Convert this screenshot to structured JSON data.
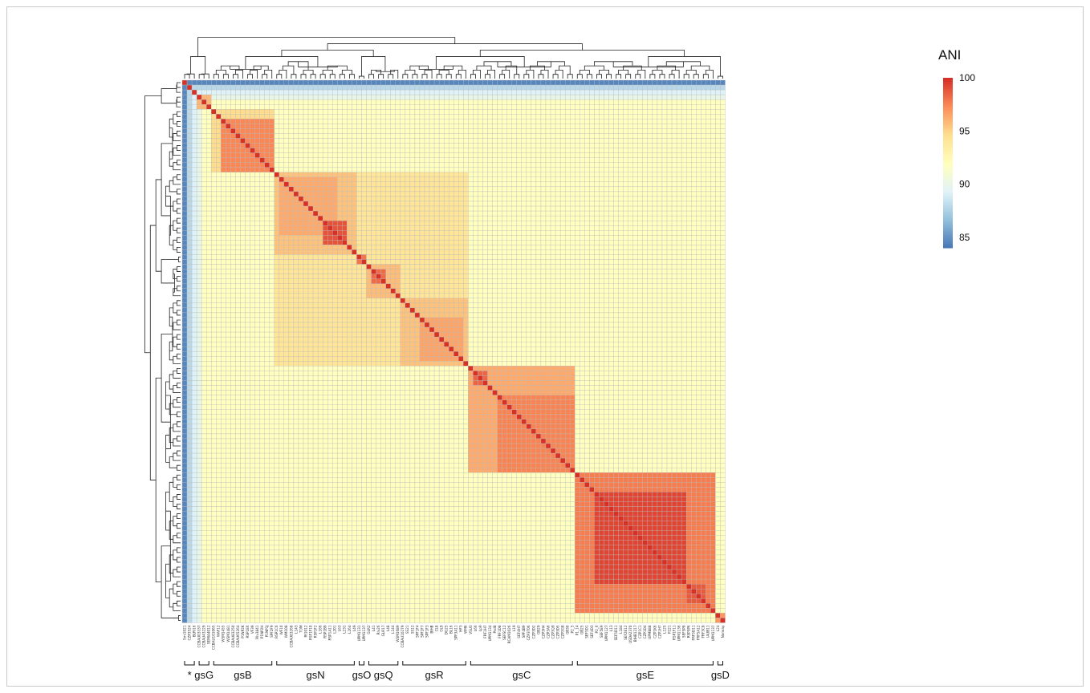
{
  "chart_data": {
    "type": "heatmap",
    "title": "",
    "legend": {
      "title": "ANI",
      "ticks": [
        100,
        95,
        90,
        85
      ],
      "range": [
        84,
        100
      ],
      "colors": [
        "#4575b4",
        "#91bfdb",
        "#e0f3f8",
        "#ffffbf",
        "#fee090",
        "#fc8d59",
        "#d73027"
      ],
      "placement": "right"
    },
    "matrix_size": 112,
    "row_dendrogram": true,
    "column_dendrogram": true,
    "column_labels": [
      "Smi1021",
      "CZP3524",
      "BLRI16",
      "CCBAU03337",
      "CCBAU43229",
      "SEMIA4012",
      "CCBAU101065",
      "WAF12",
      "WSM1455",
      "WSM1481",
      "CCBAU83250",
      "CCBAU65264",
      "P1NP2K",
      "RSP1E6",
      "VF39",
      "Rlv3841",
      "P1NP2H",
      "P1NP1J",
      "SPF2F9",
      "RSP1C6",
      "WF10",
      "WM108",
      "CCBAU83268",
      "L143",
      "TOM",
      "Rf1012",
      "RSF1F10",
      "RSP1F2",
      "L166",
      "RSP1B9",
      "RSP1A11",
      "L201",
      "L63",
      "L231",
      "L264",
      "L49",
      "UPM1131",
      "UPM1137",
      "GLR2",
      "L41",
      "Rlv26",
      "GLR17",
      "L48",
      "L144",
      "WSM1689",
      "CCBAU10279",
      "SS21",
      "SS12",
      "SPF1F4",
      "SPF2F7",
      "SPF1F3",
      "BIHB",
      "CL8",
      "OL9",
      "DG25",
      "BL16",
      "SPF3A11",
      "HF3",
      "WM6",
      "VSU3",
      "L66",
      "Lp9",
      "FRF1H7",
      "UPM1134",
      "Psd8",
      "FRF1D8",
      "SEFSC12",
      "RCAM1026",
      "L19",
      "SEF4H7",
      "SPF4B9",
      "CZP3T06",
      "CZP3D2",
      "GB29",
      "CZP3H4",
      "CZP3A6",
      "CZP3Q9",
      "CZP3D5",
      "CZP3G8",
      "GB30",
      "P2_5",
      "P1_14",
      "GB25",
      "SEF5D1",
      "SEF4D3",
      "P2_6",
      "SEF5E9",
      "UPM1127",
      "L13",
      "SEF5D11",
      "L184",
      "SEF2E12",
      "USDA2370",
      "BIHB1217",
      "CZP1C1",
      "CZP1D4",
      "UPM888",
      "CZP1K6",
      "CZP1H7",
      "L125",
      "P221",
      "RSP1F11",
      "UPM1136",
      "SEF5P8",
      "RSP5P6",
      "FRF5D11",
      "FRF5A12",
      "FRF3C8",
      "IAUB11",
      "UPM1137",
      "L24",
      "Norway"
    ],
    "groups": [
      {
        "label": "*",
        "start": 1,
        "end": 3
      },
      {
        "label": "gsG",
        "start": 4,
        "end": 6
      },
      {
        "label": "gsB",
        "start": 7,
        "end": 19
      },
      {
        "label": "gsN",
        "start": 20,
        "end": 36
      },
      {
        "label": "gsO",
        "start": 37,
        "end": 38
      },
      {
        "label": "gsQ",
        "start": 39,
        "end": 45
      },
      {
        "label": "gsR",
        "start": 46,
        "end": 59
      },
      {
        "label": "gsC",
        "start": 60,
        "end": 81
      },
      {
        "label": "gsE",
        "start": 82,
        "end": 110
      },
      {
        "label": "gsD",
        "start": 111,
        "end": 112
      }
    ],
    "blocks": [
      {
        "start": 1,
        "end": 3,
        "value": 96
      },
      {
        "start": 4,
        "end": 6,
        "value": 96
      },
      {
        "start": 7,
        "end": 19,
        "value": 94.8
      },
      {
        "start": 9,
        "end": 19,
        "value": 97.5
      },
      {
        "start": 20,
        "end": 59,
        "value": 94.2
      },
      {
        "start": 20,
        "end": 36,
        "value": 95.6
      },
      {
        "start": 21,
        "end": 32,
        "value": 96.4
      },
      {
        "start": 30,
        "end": 34,
        "value": 99
      },
      {
        "start": 37,
        "end": 38,
        "value": 98
      },
      {
        "start": 39,
        "end": 45,
        "value": 95.8
      },
      {
        "start": 40,
        "end": 42,
        "value": 98.3
      },
      {
        "start": 46,
        "end": 59,
        "value": 95.6
      },
      {
        "start": 50,
        "end": 58,
        "value": 96.6
      },
      {
        "start": 60,
        "end": 81,
        "value": 96.4
      },
      {
        "start": 61,
        "end": 63,
        "value": 98.5
      },
      {
        "start": 66,
        "end": 81,
        "value": 97.6
      },
      {
        "start": 82,
        "end": 110,
        "value": 97.8
      },
      {
        "start": 86,
        "end": 104,
        "value": 99.4
      },
      {
        "start": 105,
        "end": 108,
        "value": 98.8
      },
      {
        "start": 111,
        "end": 112,
        "value": 97
      }
    ],
    "cross_blocks": [
      {
        "rows": [
          20,
          36
        ],
        "cols": [
          46,
          59
        ],
        "value": 94.5
      },
      {
        "rows": [
          46,
          59
        ],
        "cols": [
          20,
          36
        ],
        "value": 94.5
      }
    ],
    "background_value": 92,
    "outgroup_values": {
      "col1": 84.6,
      "col2": 88,
      "col3": 89.3,
      "col4": 90
    }
  }
}
